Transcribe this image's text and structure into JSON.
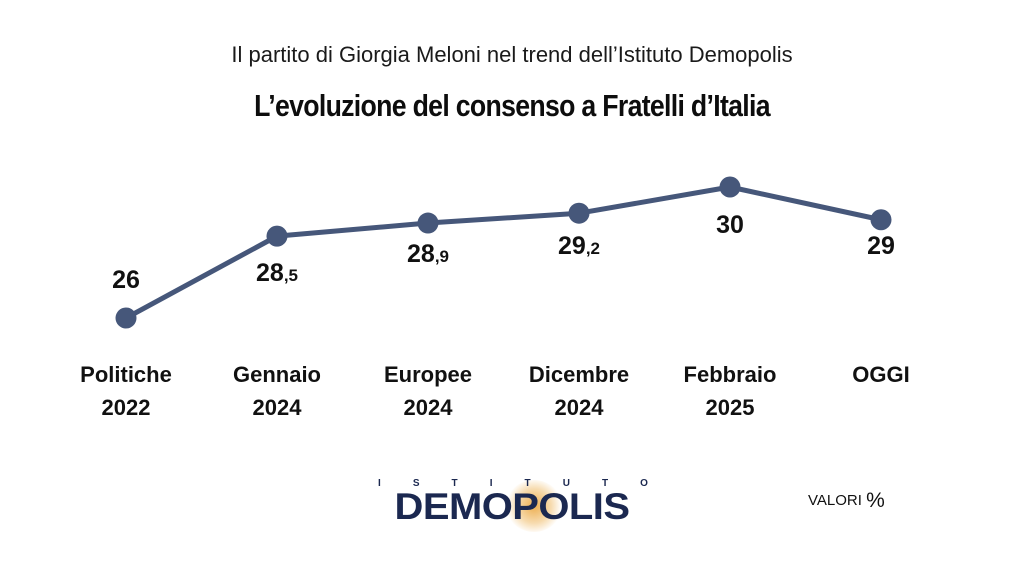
{
  "header": {
    "subtitle": "Il partito di Giorgia Meloni nel trend dell’Istituto Demopolis",
    "title": "L’evoluzione del consenso a Fratelli d’Italia"
  },
  "chart_data": {
    "type": "line",
    "title": "L’evoluzione del consenso a Fratelli d’Italia",
    "subtitle": "Il partito di Giorgia Meloni nel trend dell’Istituto Demopolis",
    "categories": [
      [
        "Politiche",
        "2022"
      ],
      [
        "Gennaio",
        "2024"
      ],
      [
        "Europee",
        "2024"
      ],
      [
        "Dicembre",
        "2024"
      ],
      [
        "Febbraio",
        "2025"
      ],
      [
        "OGGI"
      ]
    ],
    "values": [
      26,
      28.5,
      28.9,
      29.2,
      30,
      29
    ],
    "value_labels": [
      {
        "main": "26",
        "dec": ""
      },
      {
        "main": "28",
        "dec": ",5"
      },
      {
        "main": "28",
        "dec": ",9"
      },
      {
        "main": "29",
        "dec": ",2"
      },
      {
        "main": "30",
        "dec": ""
      },
      {
        "main": "29",
        "dec": ""
      }
    ],
    "unit_note": "VALORI %",
    "line_color": "#46577a",
    "grid": false,
    "legend": "none"
  },
  "footer": {
    "logo_top_letters": [
      "I",
      "S",
      "T",
      "I",
      "T",
      "U",
      "T",
      "O"
    ],
    "logo_main": "DEMOPOLIS",
    "logo_color": "#1b2850",
    "units_label": "VALORI",
    "units_symbol": "%"
  }
}
